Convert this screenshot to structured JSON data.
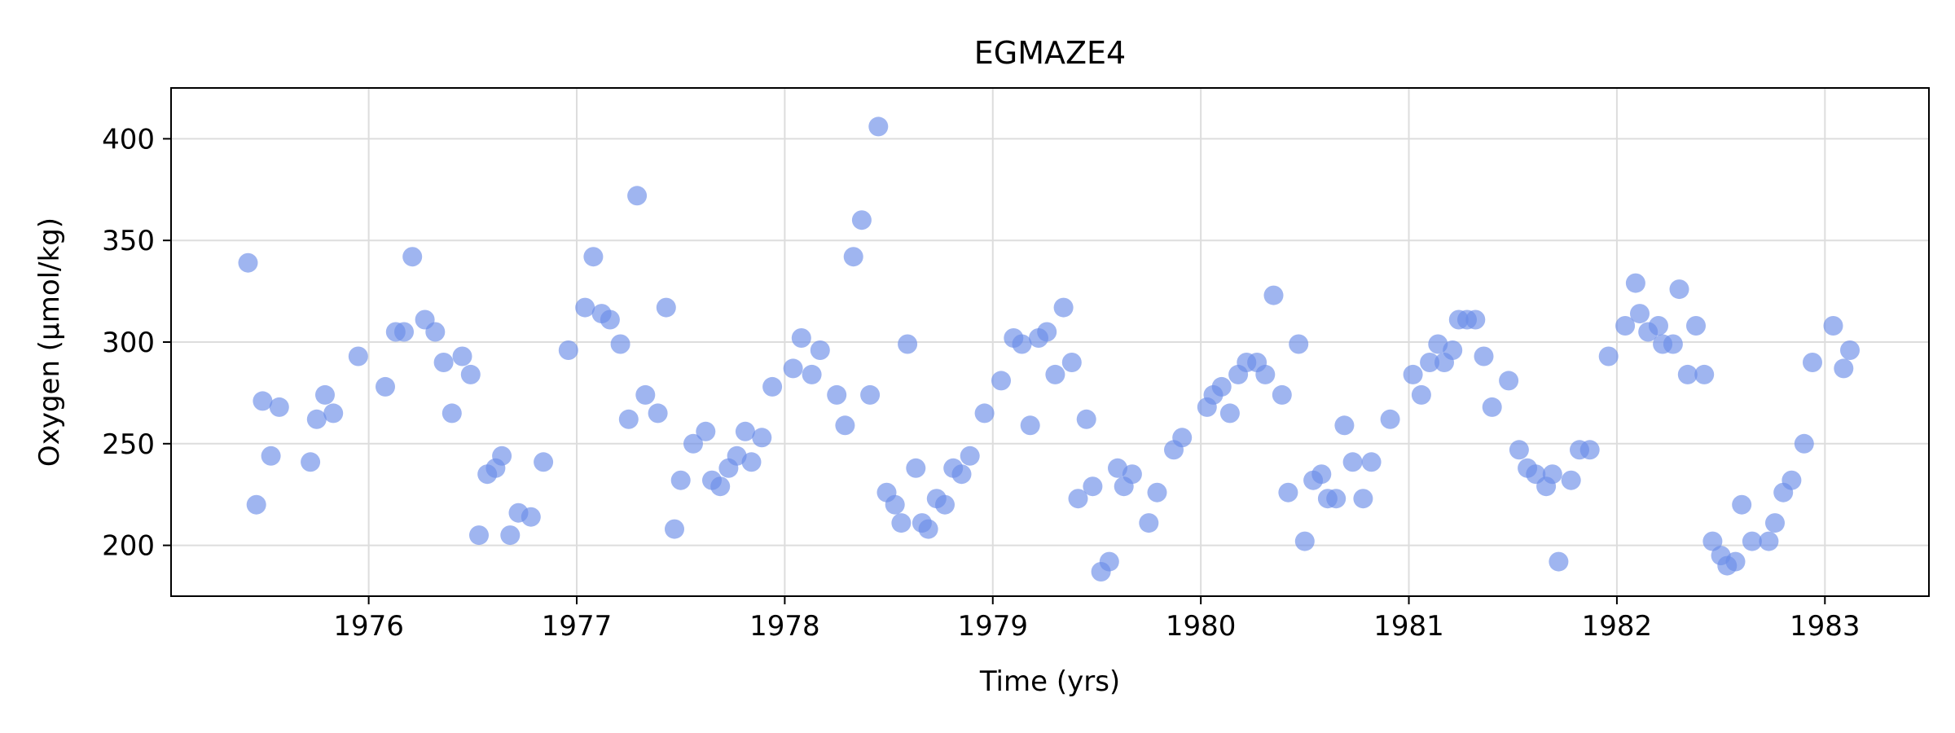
{
  "chart_data": {
    "type": "scatter",
    "title": "EGMAZE4",
    "xlabel": "Time (yrs)",
    "ylabel": "Oxygen (µmol/kg)",
    "xlim": [
      1975.05,
      1983.5
    ],
    "ylim": [
      175,
      425
    ],
    "xticks": [
      1976,
      1977,
      1978,
      1979,
      1980,
      1981,
      1982,
      1983
    ],
    "xtick_labels": [
      "1976",
      "1977",
      "1978",
      "1979",
      "1980",
      "1981",
      "1982",
      "1983"
    ],
    "yticks": [
      200,
      250,
      300,
      350,
      400
    ],
    "ytick_labels": [
      "200",
      "250",
      "300",
      "350",
      "400"
    ],
    "grid": true,
    "marker_color": "#6b8de8",
    "series": [
      {
        "points": [
          [
            1975.42,
            339
          ],
          [
            1975.46,
            220
          ],
          [
            1975.49,
            271
          ],
          [
            1975.53,
            244
          ],
          [
            1975.57,
            268
          ],
          [
            1975.72,
            241
          ],
          [
            1975.75,
            262
          ],
          [
            1975.79,
            274
          ],
          [
            1975.83,
            265
          ],
          [
            1975.95,
            293
          ],
          [
            1976.08,
            278
          ],
          [
            1976.13,
            305
          ],
          [
            1976.17,
            305
          ],
          [
            1976.21,
            342
          ],
          [
            1976.27,
            311
          ],
          [
            1976.32,
            305
          ],
          [
            1976.36,
            290
          ],
          [
            1976.4,
            265
          ],
          [
            1976.45,
            293
          ],
          [
            1976.49,
            284
          ],
          [
            1976.53,
            205
          ],
          [
            1976.57,
            235
          ],
          [
            1976.61,
            238
          ],
          [
            1976.64,
            244
          ],
          [
            1976.68,
            205
          ],
          [
            1976.72,
            216
          ],
          [
            1976.78,
            214
          ],
          [
            1976.84,
            241
          ],
          [
            1976.96,
            296
          ],
          [
            1977.04,
            317
          ],
          [
            1977.08,
            342
          ],
          [
            1977.12,
            314
          ],
          [
            1977.16,
            311
          ],
          [
            1977.21,
            299
          ],
          [
            1977.25,
            262
          ],
          [
            1977.29,
            372
          ],
          [
            1977.33,
            274
          ],
          [
            1977.39,
            265
          ],
          [
            1977.43,
            317
          ],
          [
            1977.47,
            208
          ],
          [
            1977.5,
            232
          ],
          [
            1977.56,
            250
          ],
          [
            1977.62,
            256
          ],
          [
            1977.65,
            232
          ],
          [
            1977.69,
            229
          ],
          [
            1977.73,
            238
          ],
          [
            1977.77,
            244
          ],
          [
            1977.81,
            256
          ],
          [
            1977.84,
            241
          ],
          [
            1977.89,
            253
          ],
          [
            1977.94,
            278
          ],
          [
            1978.04,
            287
          ],
          [
            1978.08,
            302
          ],
          [
            1978.13,
            284
          ],
          [
            1978.17,
            296
          ],
          [
            1978.25,
            274
          ],
          [
            1978.29,
            259
          ],
          [
            1978.33,
            342
          ],
          [
            1978.37,
            360
          ],
          [
            1978.41,
            274
          ],
          [
            1978.45,
            406
          ],
          [
            1978.49,
            226
          ],
          [
            1978.53,
            220
          ],
          [
            1978.56,
            211
          ],
          [
            1978.59,
            299
          ],
          [
            1978.63,
            238
          ],
          [
            1978.66,
            211
          ],
          [
            1978.69,
            208
          ],
          [
            1978.73,
            223
          ],
          [
            1978.77,
            220
          ],
          [
            1978.81,
            238
          ],
          [
            1978.85,
            235
          ],
          [
            1978.89,
            244
          ],
          [
            1978.96,
            265
          ],
          [
            1979.04,
            281
          ],
          [
            1979.1,
            302
          ],
          [
            1979.14,
            299
          ],
          [
            1979.18,
            259
          ],
          [
            1979.22,
            302
          ],
          [
            1979.26,
            305
          ],
          [
            1979.3,
            284
          ],
          [
            1979.34,
            317
          ],
          [
            1979.38,
            290
          ],
          [
            1979.41,
            223
          ],
          [
            1979.45,
            262
          ],
          [
            1979.48,
            229
          ],
          [
            1979.52,
            187
          ],
          [
            1979.56,
            192
          ],
          [
            1979.6,
            238
          ],
          [
            1979.63,
            229
          ],
          [
            1979.67,
            235
          ],
          [
            1979.75,
            211
          ],
          [
            1979.79,
            226
          ],
          [
            1979.87,
            247
          ],
          [
            1979.91,
            253
          ],
          [
            1980.03,
            268
          ],
          [
            1980.06,
            274
          ],
          [
            1980.1,
            278
          ],
          [
            1980.14,
            265
          ],
          [
            1980.18,
            284
          ],
          [
            1980.22,
            290
          ],
          [
            1980.27,
            290
          ],
          [
            1980.31,
            284
          ],
          [
            1980.35,
            323
          ],
          [
            1980.39,
            274
          ],
          [
            1980.42,
            226
          ],
          [
            1980.47,
            299
          ],
          [
            1980.5,
            202
          ],
          [
            1980.54,
            232
          ],
          [
            1980.58,
            235
          ],
          [
            1980.61,
            223
          ],
          [
            1980.65,
            223
          ],
          [
            1980.69,
            259
          ],
          [
            1980.73,
            241
          ],
          [
            1980.78,
            223
          ],
          [
            1980.82,
            241
          ],
          [
            1980.91,
            262
          ],
          [
            1981.02,
            284
          ],
          [
            1981.06,
            274
          ],
          [
            1981.1,
            290
          ],
          [
            1981.14,
            299
          ],
          [
            1981.17,
            290
          ],
          [
            1981.21,
            296
          ],
          [
            1981.24,
            311
          ],
          [
            1981.28,
            311
          ],
          [
            1981.32,
            311
          ],
          [
            1981.36,
            293
          ],
          [
            1981.4,
            268
          ],
          [
            1981.48,
            281
          ],
          [
            1981.53,
            247
          ],
          [
            1981.57,
            238
          ],
          [
            1981.61,
            235
          ],
          [
            1981.66,
            229
          ],
          [
            1981.69,
            235
          ],
          [
            1981.72,
            192
          ],
          [
            1981.78,
            232
          ],
          [
            1981.82,
            247
          ],
          [
            1981.87,
            247
          ],
          [
            1981.96,
            293
          ],
          [
            1982.04,
            308
          ],
          [
            1982.09,
            329
          ],
          [
            1982.11,
            314
          ],
          [
            1982.15,
            305
          ],
          [
            1982.2,
            308
          ],
          [
            1982.22,
            299
          ],
          [
            1982.27,
            299
          ],
          [
            1982.3,
            326
          ],
          [
            1982.34,
            284
          ],
          [
            1982.38,
            308
          ],
          [
            1982.42,
            284
          ],
          [
            1982.46,
            202
          ],
          [
            1982.5,
            195
          ],
          [
            1982.53,
            190
          ],
          [
            1982.57,
            192
          ],
          [
            1982.6,
            220
          ],
          [
            1982.65,
            202
          ],
          [
            1982.73,
            202
          ],
          [
            1982.76,
            211
          ],
          [
            1982.8,
            226
          ],
          [
            1982.84,
            232
          ],
          [
            1982.9,
            250
          ],
          [
            1982.94,
            290
          ],
          [
            1983.04,
            308
          ],
          [
            1983.09,
            287
          ],
          [
            1983.12,
            296
          ]
        ]
      }
    ]
  }
}
